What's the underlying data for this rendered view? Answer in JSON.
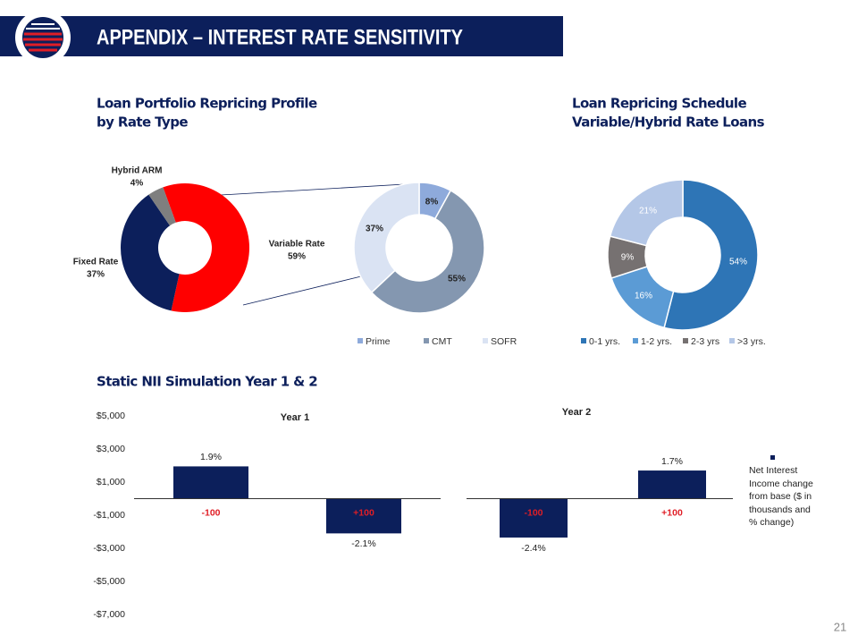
{
  "header": {
    "title": "APPENDIX – INTEREST RATE SENSITIVITY"
  },
  "page_number": "21",
  "nii_title": "Static NII Simulation Year 1 & 2",
  "legend": "Net Interest Income change from base ($ in thousands and % change)",
  "chart_data": [
    {
      "type": "donut",
      "title": [
        "Loan Portfolio Repricing Profile",
        "by Rate Type"
      ],
      "categories": [
        "Variable Rate",
        "Fixed Rate",
        "Hybrid ARM"
      ],
      "values": [
        59,
        37,
        4
      ],
      "value_labels": [
        "59%",
        "37%",
        "4%"
      ],
      "colors": [
        "#ff0000",
        "#0c1f5b",
        "#7f7f7f"
      ]
    },
    {
      "type": "donut",
      "categories": [
        "Prime",
        "CMT",
        "SOFR"
      ],
      "values": [
        8,
        55,
        37
      ],
      "value_labels": [
        "8%",
        "55%",
        "37%"
      ],
      "colors": [
        "#8eaadb",
        "#8497b0",
        "#dae3f3"
      ]
    },
    {
      "type": "donut",
      "title": [
        "Loan Repricing Schedule",
        "Variable/Hybrid Rate Loans"
      ],
      "categories": [
        "0-1 yrs.",
        "1-2 yrs.",
        "2-3 yrs",
        ">3 yrs."
      ],
      "values": [
        54,
        16,
        9,
        21
      ],
      "value_labels": [
        "54%",
        "16%",
        "9%",
        "21%"
      ],
      "colors": [
        "#2e75b6",
        "#5b9bd5",
        "#767171",
        "#b4c7e7"
      ]
    },
    {
      "type": "bar",
      "title": "Year 1",
      "categories": [
        "-100",
        "+100"
      ],
      "values": [
        1950,
        -2100
      ],
      "pct_labels": [
        "1.9%",
        "-2.1%"
      ],
      "color": "#0c1f5b",
      "ylim": [
        -7000,
        5000
      ],
      "yticks": [
        {
          "value": 5000,
          "label": "$5,000"
        },
        {
          "value": 3000,
          "label": "$3,000"
        },
        {
          "value": 1000,
          "label": "$1,000"
        },
        {
          "value": -1000,
          "label": "-$1,000"
        },
        {
          "value": -3000,
          "label": "-$3,000"
        },
        {
          "value": -5000,
          "label": "-$5,000"
        },
        {
          "value": -7000,
          "label": "-$7,000"
        }
      ]
    },
    {
      "type": "bar",
      "title": "Year 2",
      "categories": [
        "-100",
        "+100"
      ],
      "values": [
        -2350,
        1700
      ],
      "pct_labels": [
        "-2.4%",
        "1.7%"
      ],
      "color": "#0c1f5b"
    }
  ]
}
